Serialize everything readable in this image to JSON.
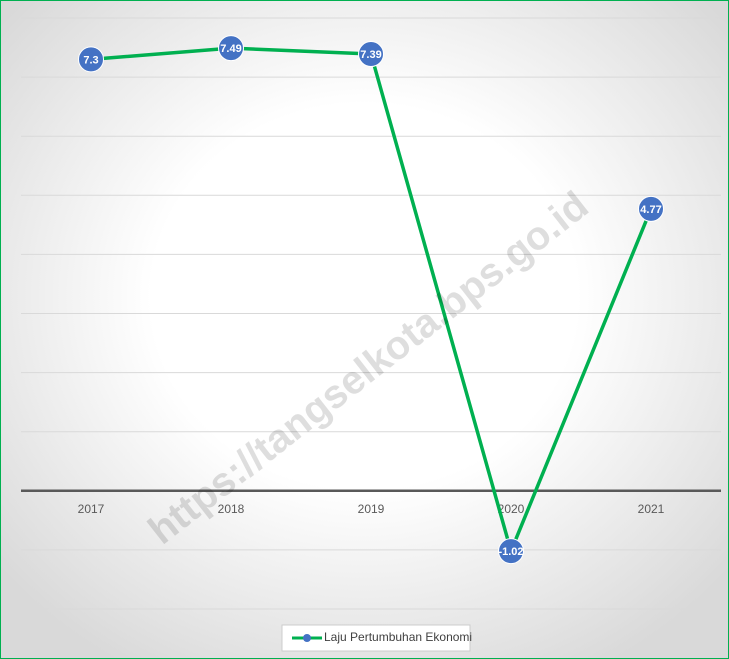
{
  "chart_data": {
    "type": "line",
    "categories": [
      "2017",
      "2018",
      "2019",
      "2020",
      "2021"
    ],
    "series": [
      {
        "name": "Laju Pertumbuhan Ekonomi",
        "color": "#00b050",
        "marker_color": "#4472c4",
        "values": [
          7.3,
          7.49,
          7.39,
          -1.02,
          4.77
        ]
      }
    ],
    "ylim": [
      -2,
      8
    ],
    "yticks": [
      -2,
      -1,
      0,
      1,
      2,
      3,
      4,
      5,
      6,
      7,
      8
    ],
    "grid": true,
    "legend": "bottom",
    "watermark": "https://tangselkota.bps.go.id"
  }
}
